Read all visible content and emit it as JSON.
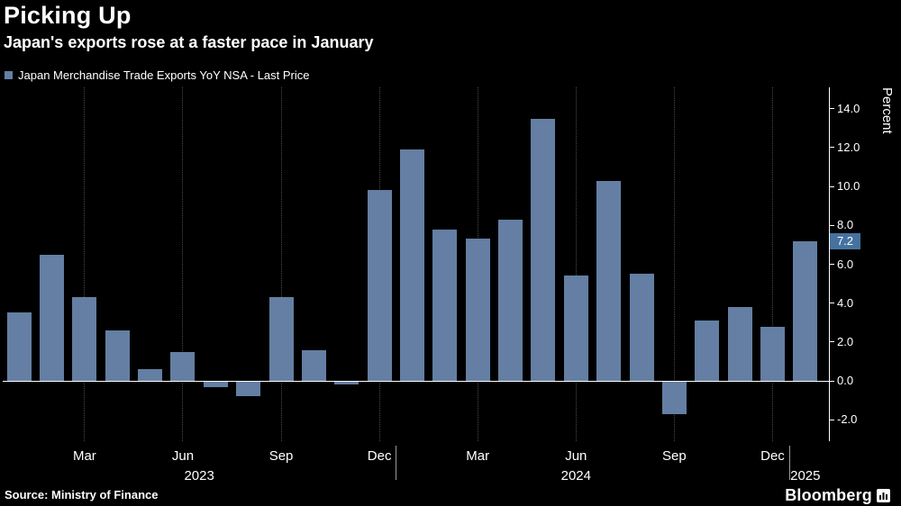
{
  "header": {
    "title": "Picking Up",
    "subtitle": "Japan's exports rose at a faster pace in January",
    "legend_label": "Japan Merchandise Trade Exports YoY NSA - Last Price"
  },
  "footer": {
    "source": "Source: Ministry of Finance",
    "logo": "Bloomberg"
  },
  "chart_data": {
    "type": "bar",
    "title": "Picking Up",
    "subtitle": "Japan's exports rose at a faster pace in January",
    "legend": "Japan Merchandise Trade Exports YoY NSA - Last Price",
    "ylabel": "Percent",
    "ylim": [
      -3.1,
      15.1
    ],
    "yticks": [
      14.0,
      12.0,
      10.0,
      8.0,
      6.0,
      4.0,
      2.0,
      0.0,
      -2.0
    ],
    "categories": [
      "Jan 2023",
      "Feb 2023",
      "Mar 2023",
      "Apr 2023",
      "May 2023",
      "Jun 2023",
      "Jul 2023",
      "Aug 2023",
      "Sep 2023",
      "Oct 2023",
      "Nov 2023",
      "Dec 2023",
      "Jan 2024",
      "Feb 2024",
      "Mar 2024",
      "Apr 2024",
      "May 2024",
      "Jun 2024",
      "Jul 2024",
      "Aug 2024",
      "Sep 2024",
      "Oct 2024",
      "Nov 2024",
      "Dec 2024",
      "Jan 2025"
    ],
    "values": [
      3.5,
      6.5,
      4.3,
      2.6,
      0.6,
      1.5,
      -0.3,
      -0.8,
      4.3,
      1.6,
      -0.2,
      9.8,
      11.9,
      7.8,
      7.3,
      8.3,
      13.5,
      5.4,
      10.3,
      5.5,
      -1.7,
      3.1,
      3.8,
      2.8,
      7.2
    ],
    "xticks": [
      {
        "index": 2,
        "label": "Mar"
      },
      {
        "index": 5,
        "label": "Jun"
      },
      {
        "index": 8,
        "label": "Sep"
      },
      {
        "index": 11,
        "label": "Dec"
      },
      {
        "index": 14,
        "label": "Mar"
      },
      {
        "index": 17,
        "label": "Jun"
      },
      {
        "index": 20,
        "label": "Sep"
      },
      {
        "index": 23,
        "label": "Dec"
      }
    ],
    "year_labels": [
      {
        "label": "2023",
        "center_index": 5.5
      },
      {
        "label": "2024",
        "center_index": 17.0
      },
      {
        "label": "2025",
        "center_index": 24.0
      }
    ],
    "year_separator_indices": [
      12,
      24
    ],
    "last_price": 7.2,
    "legend_position": "top-left",
    "grid": "vertical-dotted",
    "colors": {
      "background": "#000000",
      "bar": "#647fa3",
      "axis": "#ffffff",
      "grid": "#4a4a4a",
      "last_price_bg": "#46729e",
      "text": "#ffffff"
    }
  }
}
